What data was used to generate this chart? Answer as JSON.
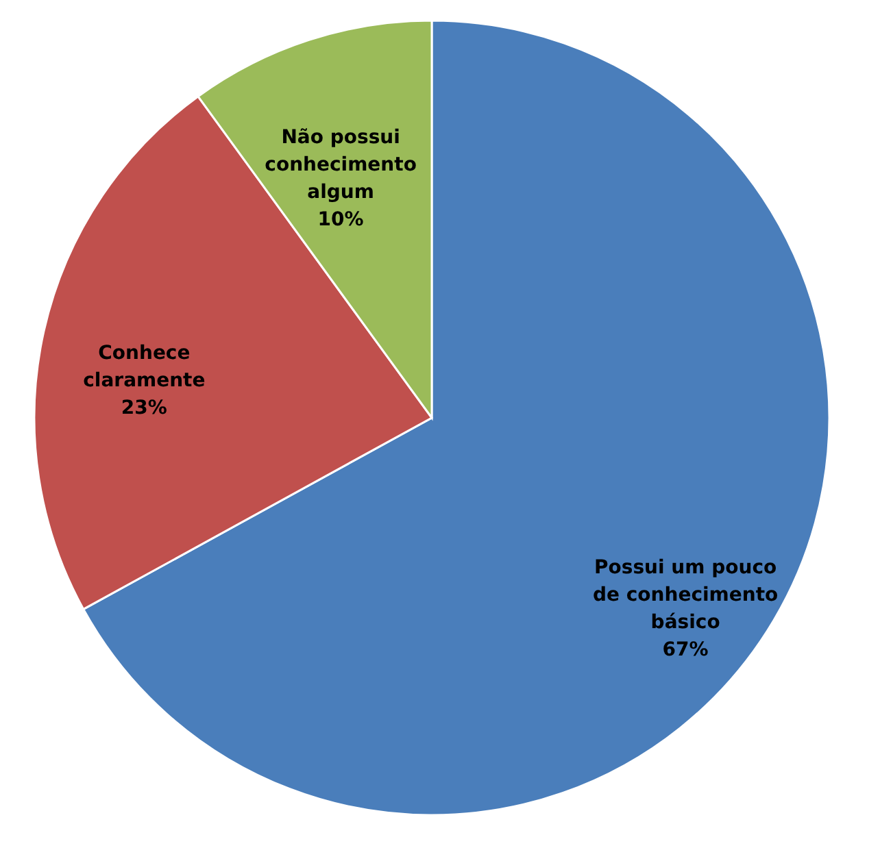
{
  "chart_data": {
    "type": "pie",
    "categories": [
      "Possui um pouco de conhecimento básico",
      "Conhece claramente",
      "Não possui conhecimento algum"
    ],
    "values": [
      67,
      23,
      10
    ],
    "colors": [
      "#4a7ebb",
      "#c0504d",
      "#9bbb59"
    ],
    "value_labels": [
      "67%",
      "23%",
      "10%"
    ],
    "legend": false
  }
}
